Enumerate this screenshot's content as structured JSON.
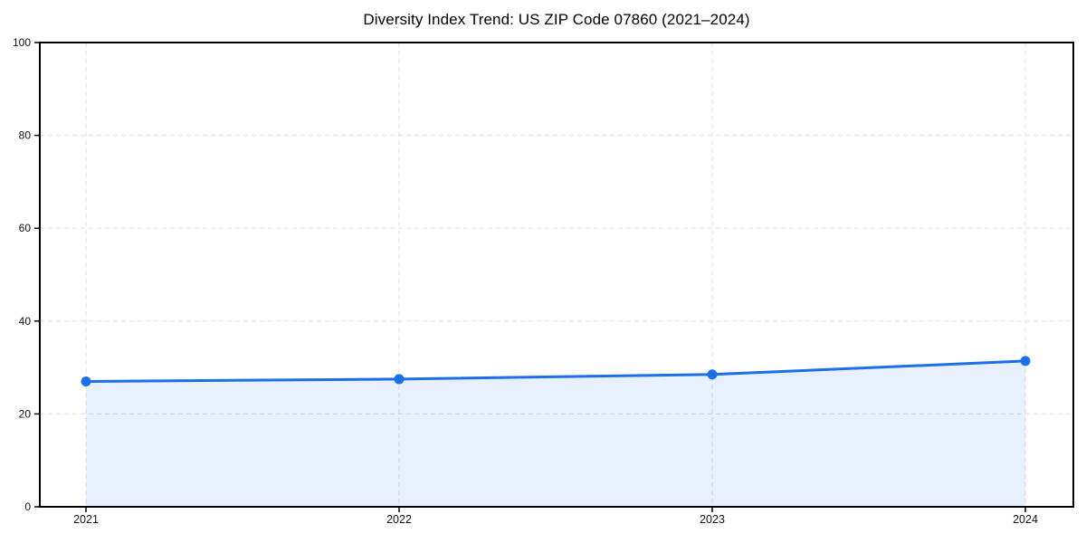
{
  "chart_data": {
    "type": "line",
    "title": "Diversity Index Trend: US ZIP Code 07860 (2021–2024)",
    "categories": [
      "2021",
      "2022",
      "2023",
      "2024"
    ],
    "series": [
      {
        "name": "Diversity Index",
        "values": [
          27.0,
          27.5,
          28.5,
          31.4
        ]
      }
    ],
    "xlabel": "",
    "ylabel": "",
    "ylim": [
      0,
      100
    ],
    "yticks": [
      0,
      20,
      40,
      60,
      80,
      100
    ],
    "grid": "dashed-both",
    "legend_position": "none",
    "area_fill": true,
    "marker": "circle",
    "colors": {
      "line": "#1b6fe8",
      "marker": "#1b6fe8",
      "fill": "#1b6fe8",
      "fill_opacity": 0.1,
      "gridline": "#e4e4e4",
      "axis": "#000000",
      "tick_text": "#111111",
      "background": "#ffffff"
    }
  }
}
